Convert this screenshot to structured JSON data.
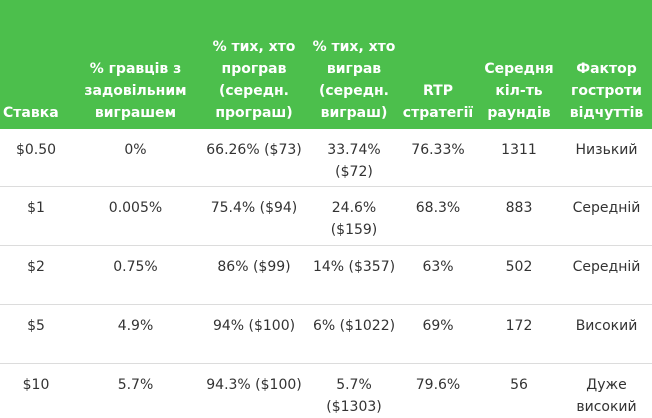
{
  "table": {
    "headers": [
      "Ставка",
      "% гравців з задовільним виграшем",
      "% тих, хто програв (середн. програш)",
      "% тих, хто виграв (середн. виграш)",
      "RTP стратегії",
      "Середня кіл-ть раундів",
      "Фактор гостроти відчуттів"
    ],
    "rows": [
      [
        "$0.50",
        "0%",
        "66.26% ($73)",
        "33.74% ($72)",
        "76.33%",
        "1311",
        "Низький"
      ],
      [
        "$1",
        "0.005%",
        "75.4% ($94)",
        "24.6% ($159)",
        "68.3%",
        "883",
        "Середній"
      ],
      [
        "$2",
        "0.75%",
        "86% ($99)",
        "14% ($357)",
        "63%",
        "502",
        "Середній"
      ],
      [
        "$5",
        "4.9%",
        "94% ($100)",
        "6% ($1022)",
        "69%",
        "172",
        "Високий"
      ],
      [
        "$10",
        "5.7%",
        "94.3% ($100)",
        "5.7% ($1303)",
        "79.6%",
        "56",
        "Дуже високий"
      ]
    ]
  }
}
